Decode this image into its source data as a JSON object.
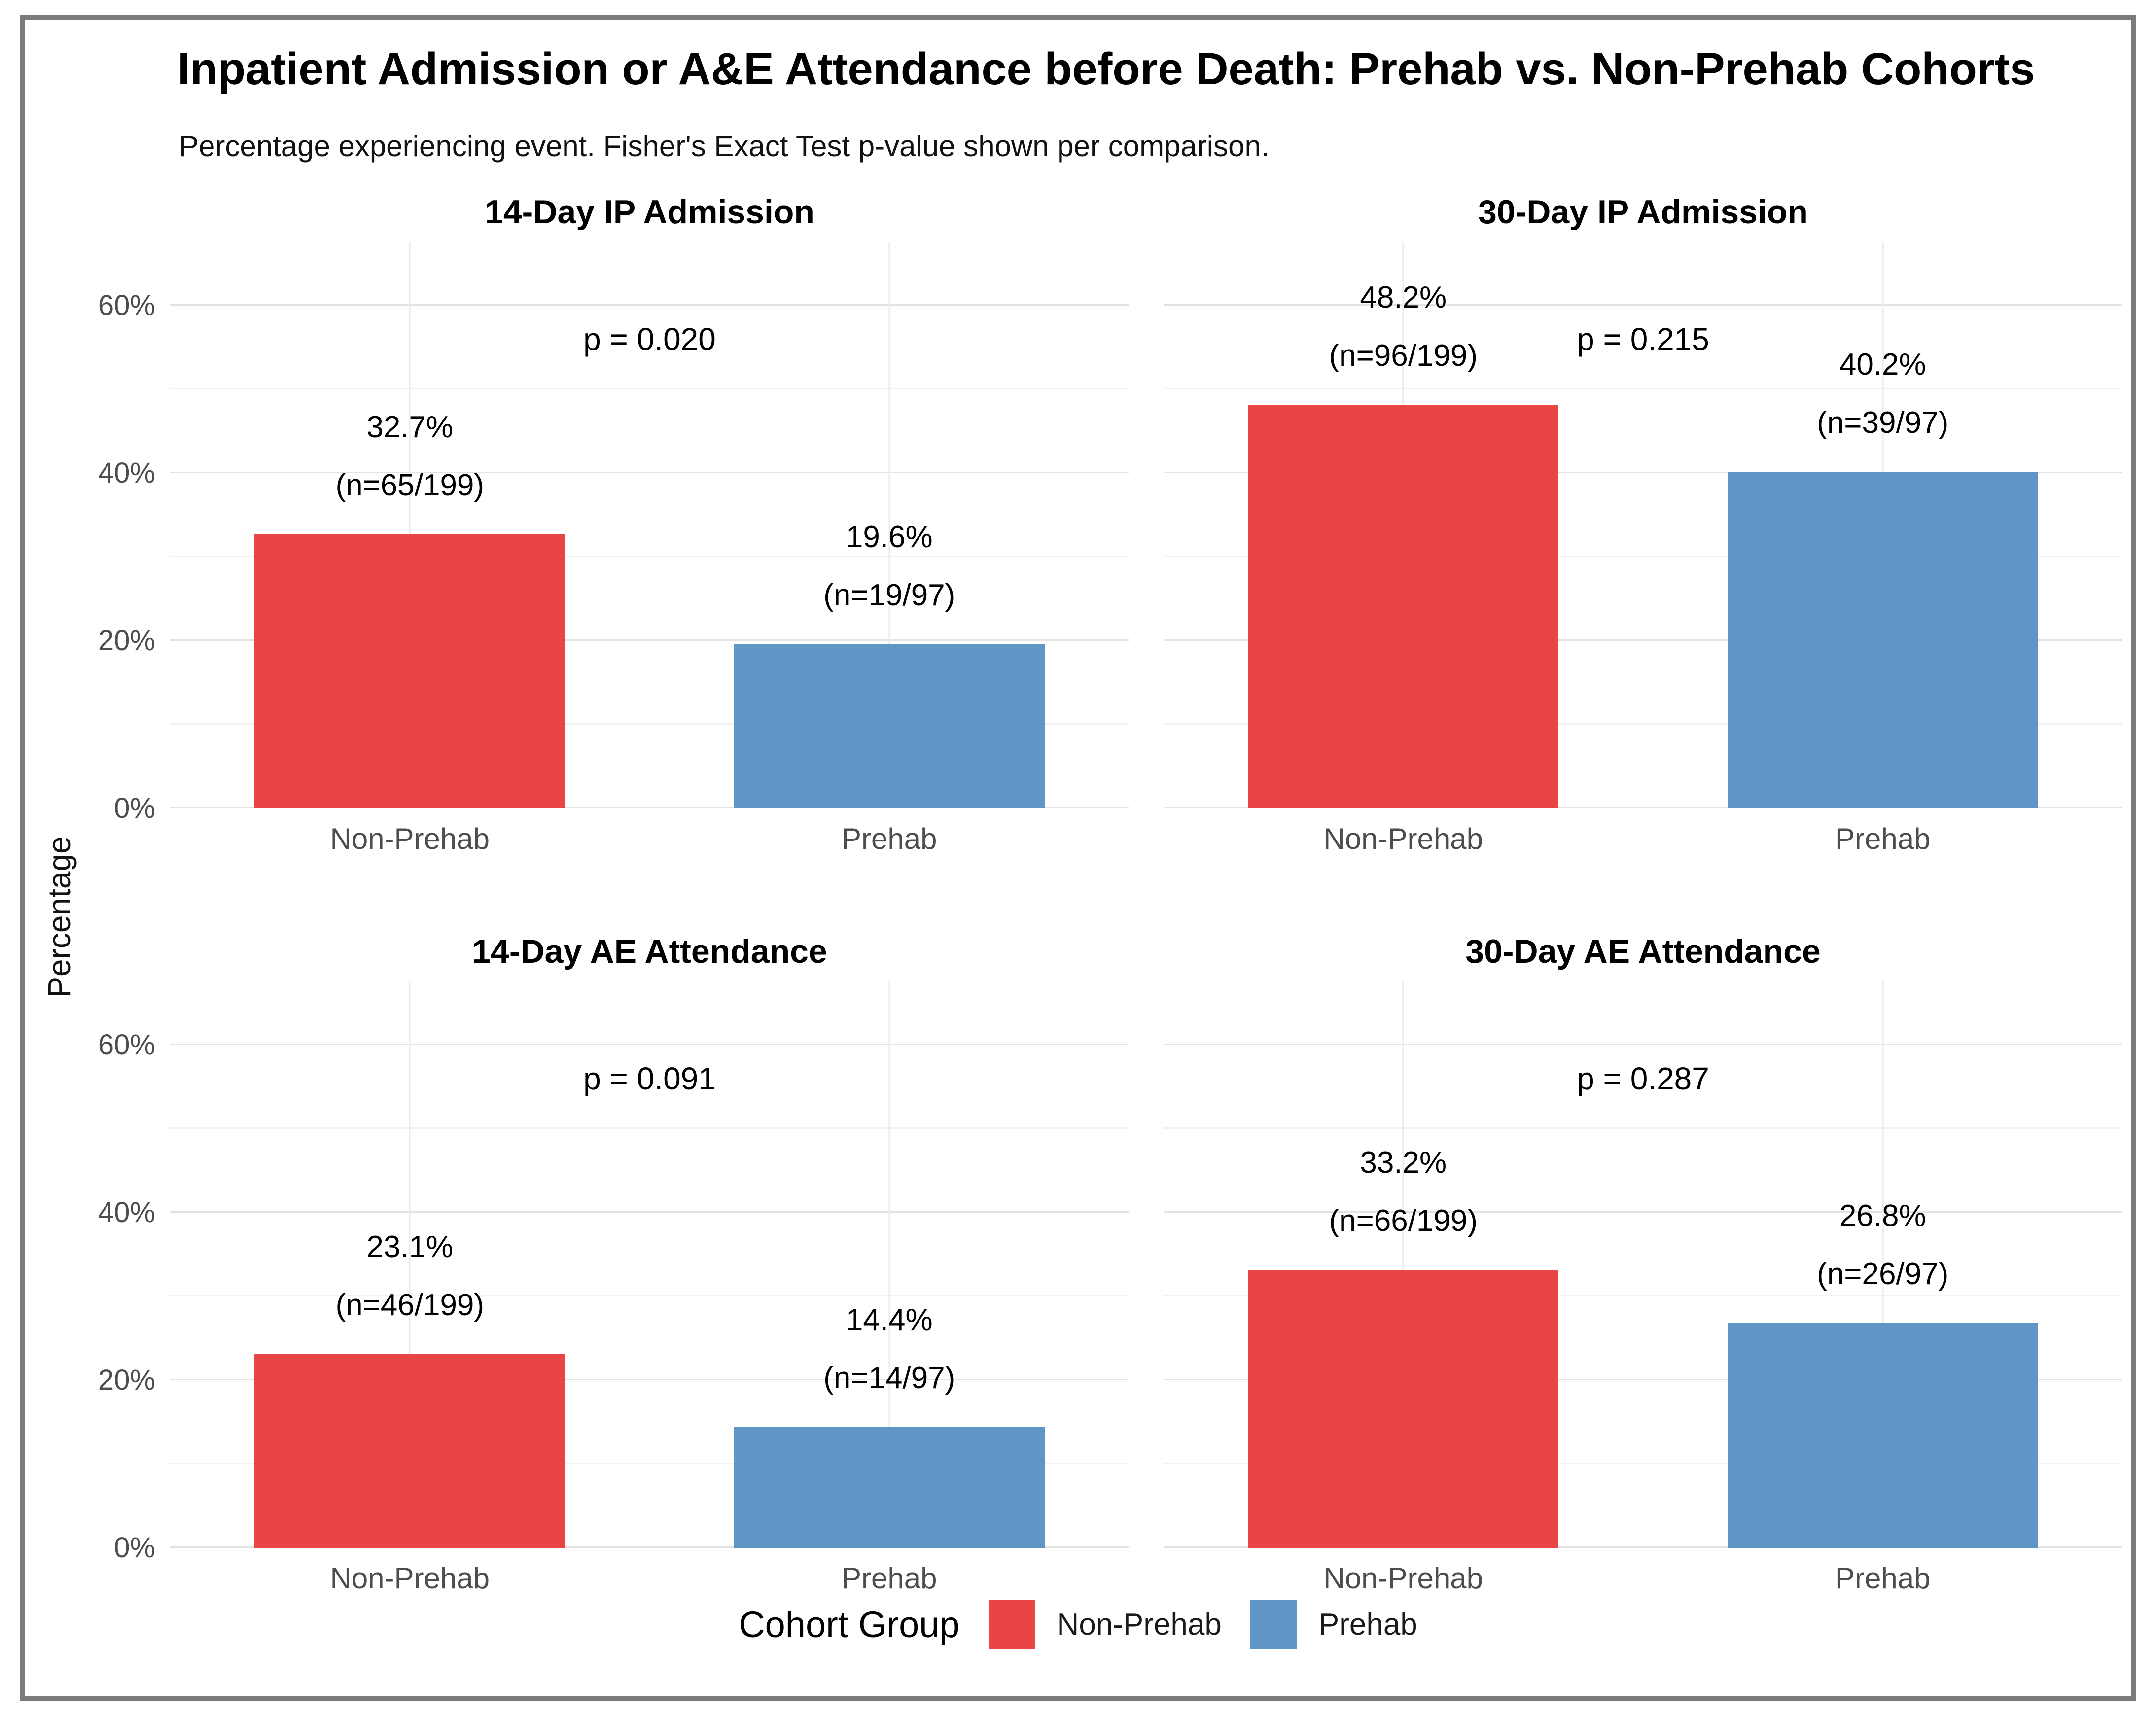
{
  "title": "Inpatient Admission or A&E Attendance before Death: Prehab vs. Non-Prehab Cohorts",
  "subtitle": "Percentage experiencing event. Fisher's Exact Test p-value shown per comparison.",
  "ylabel": "Percentage",
  "legend": {
    "title": "Cohort Group",
    "items": [
      {
        "label": "Non-Prehab",
        "color": "#E94545"
      },
      {
        "label": "Prehab",
        "color": "#5F96C6"
      }
    ]
  },
  "chart_data": {
    "type": "bar",
    "categories": [
      "Non-Prehab",
      "Prehab"
    ],
    "ylabel": "Percentage",
    "ylim": [
      0,
      67.6
    ],
    "yticks_top_to_bottom": [
      "60%",
      "40%",
      "20%",
      "0%"
    ],
    "grid": {
      "major": [
        0,
        20,
        40,
        60
      ],
      "minor": [
        10,
        30,
        50
      ]
    },
    "colors": {
      "Non-Prehab": "#E94545",
      "Prehab": "#5F96C6"
    },
    "facets": [
      {
        "title": "14-Day IP Admission",
        "p_label": "p = 0.020",
        "values": [
          32.7,
          19.6
        ],
        "labels": [
          [
            "32.7%",
            "(n=65/199)"
          ],
          [
            "19.6%",
            "(n=19/97)"
          ]
        ]
      },
      {
        "title": "30-Day IP Admission",
        "p_label": "p = 0.215",
        "values": [
          48.2,
          40.2
        ],
        "labels": [
          [
            "48.2%",
            "(n=96/199)"
          ],
          [
            "40.2%",
            "(n=39/97)"
          ]
        ]
      },
      {
        "title": "14-Day AE Attendance",
        "p_label": "p = 0.091",
        "values": [
          23.1,
          14.4
        ],
        "labels": [
          [
            "23.1%",
            "(n=46/199)"
          ],
          [
            "14.4%",
            "(n=14/97)"
          ]
        ]
      },
      {
        "title": "30-Day AE Attendance",
        "p_label": "p = 0.287",
        "values": [
          33.2,
          26.8
        ],
        "labels": [
          [
            "33.2%",
            "(n=66/199)"
          ],
          [
            "26.8%",
            "(n=26/97)"
          ]
        ]
      }
    ]
  }
}
